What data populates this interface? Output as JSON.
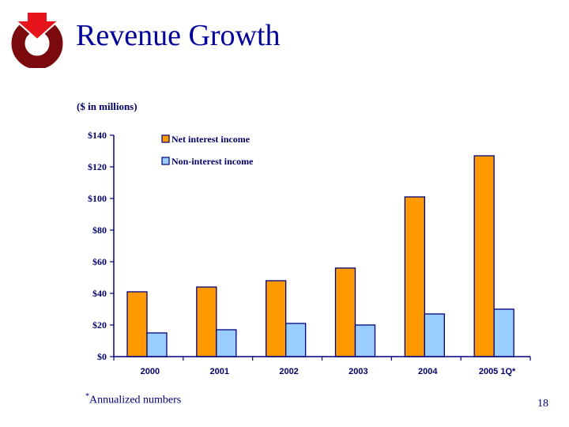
{
  "slide": {
    "title": "Revenue Growth",
    "units_note": "($ in millions)",
    "footnote_marker": "*",
    "footnote_text": "Annualized numbers",
    "page_number": "18",
    "logo_icon": "arrow-ring-logo"
  },
  "colors": {
    "title": "#000099",
    "axis": "#000080",
    "net_interest": "#FF9900",
    "non_interest": "#99CCFF",
    "logo_arrow": "#E8141C",
    "logo_ring": "#7A0A0E"
  },
  "chart_data": {
    "type": "bar",
    "title": "",
    "xlabel": "",
    "ylabel": "($ in millions)",
    "categories": [
      "2000",
      "2001",
      "2002",
      "2003",
      "2004",
      "2005 1Q*"
    ],
    "series": [
      {
        "name": "Net interest income",
        "color": "#FF9900",
        "values": [
          41,
          44,
          48,
          56,
          101,
          127
        ]
      },
      {
        "name": "Non-interest income",
        "color": "#99CCFF",
        "values": [
          15,
          17,
          21,
          20,
          27,
          30
        ]
      }
    ],
    "ylim": [
      0,
      140
    ],
    "yticks": [
      0,
      20,
      40,
      60,
      80,
      100,
      120,
      140
    ],
    "ytick_labels": [
      "$0",
      "$20",
      "$40",
      "$60",
      "$80",
      "$100",
      "$120",
      "$140"
    ],
    "grid": false,
    "legend_position": "top-left-inside"
  }
}
